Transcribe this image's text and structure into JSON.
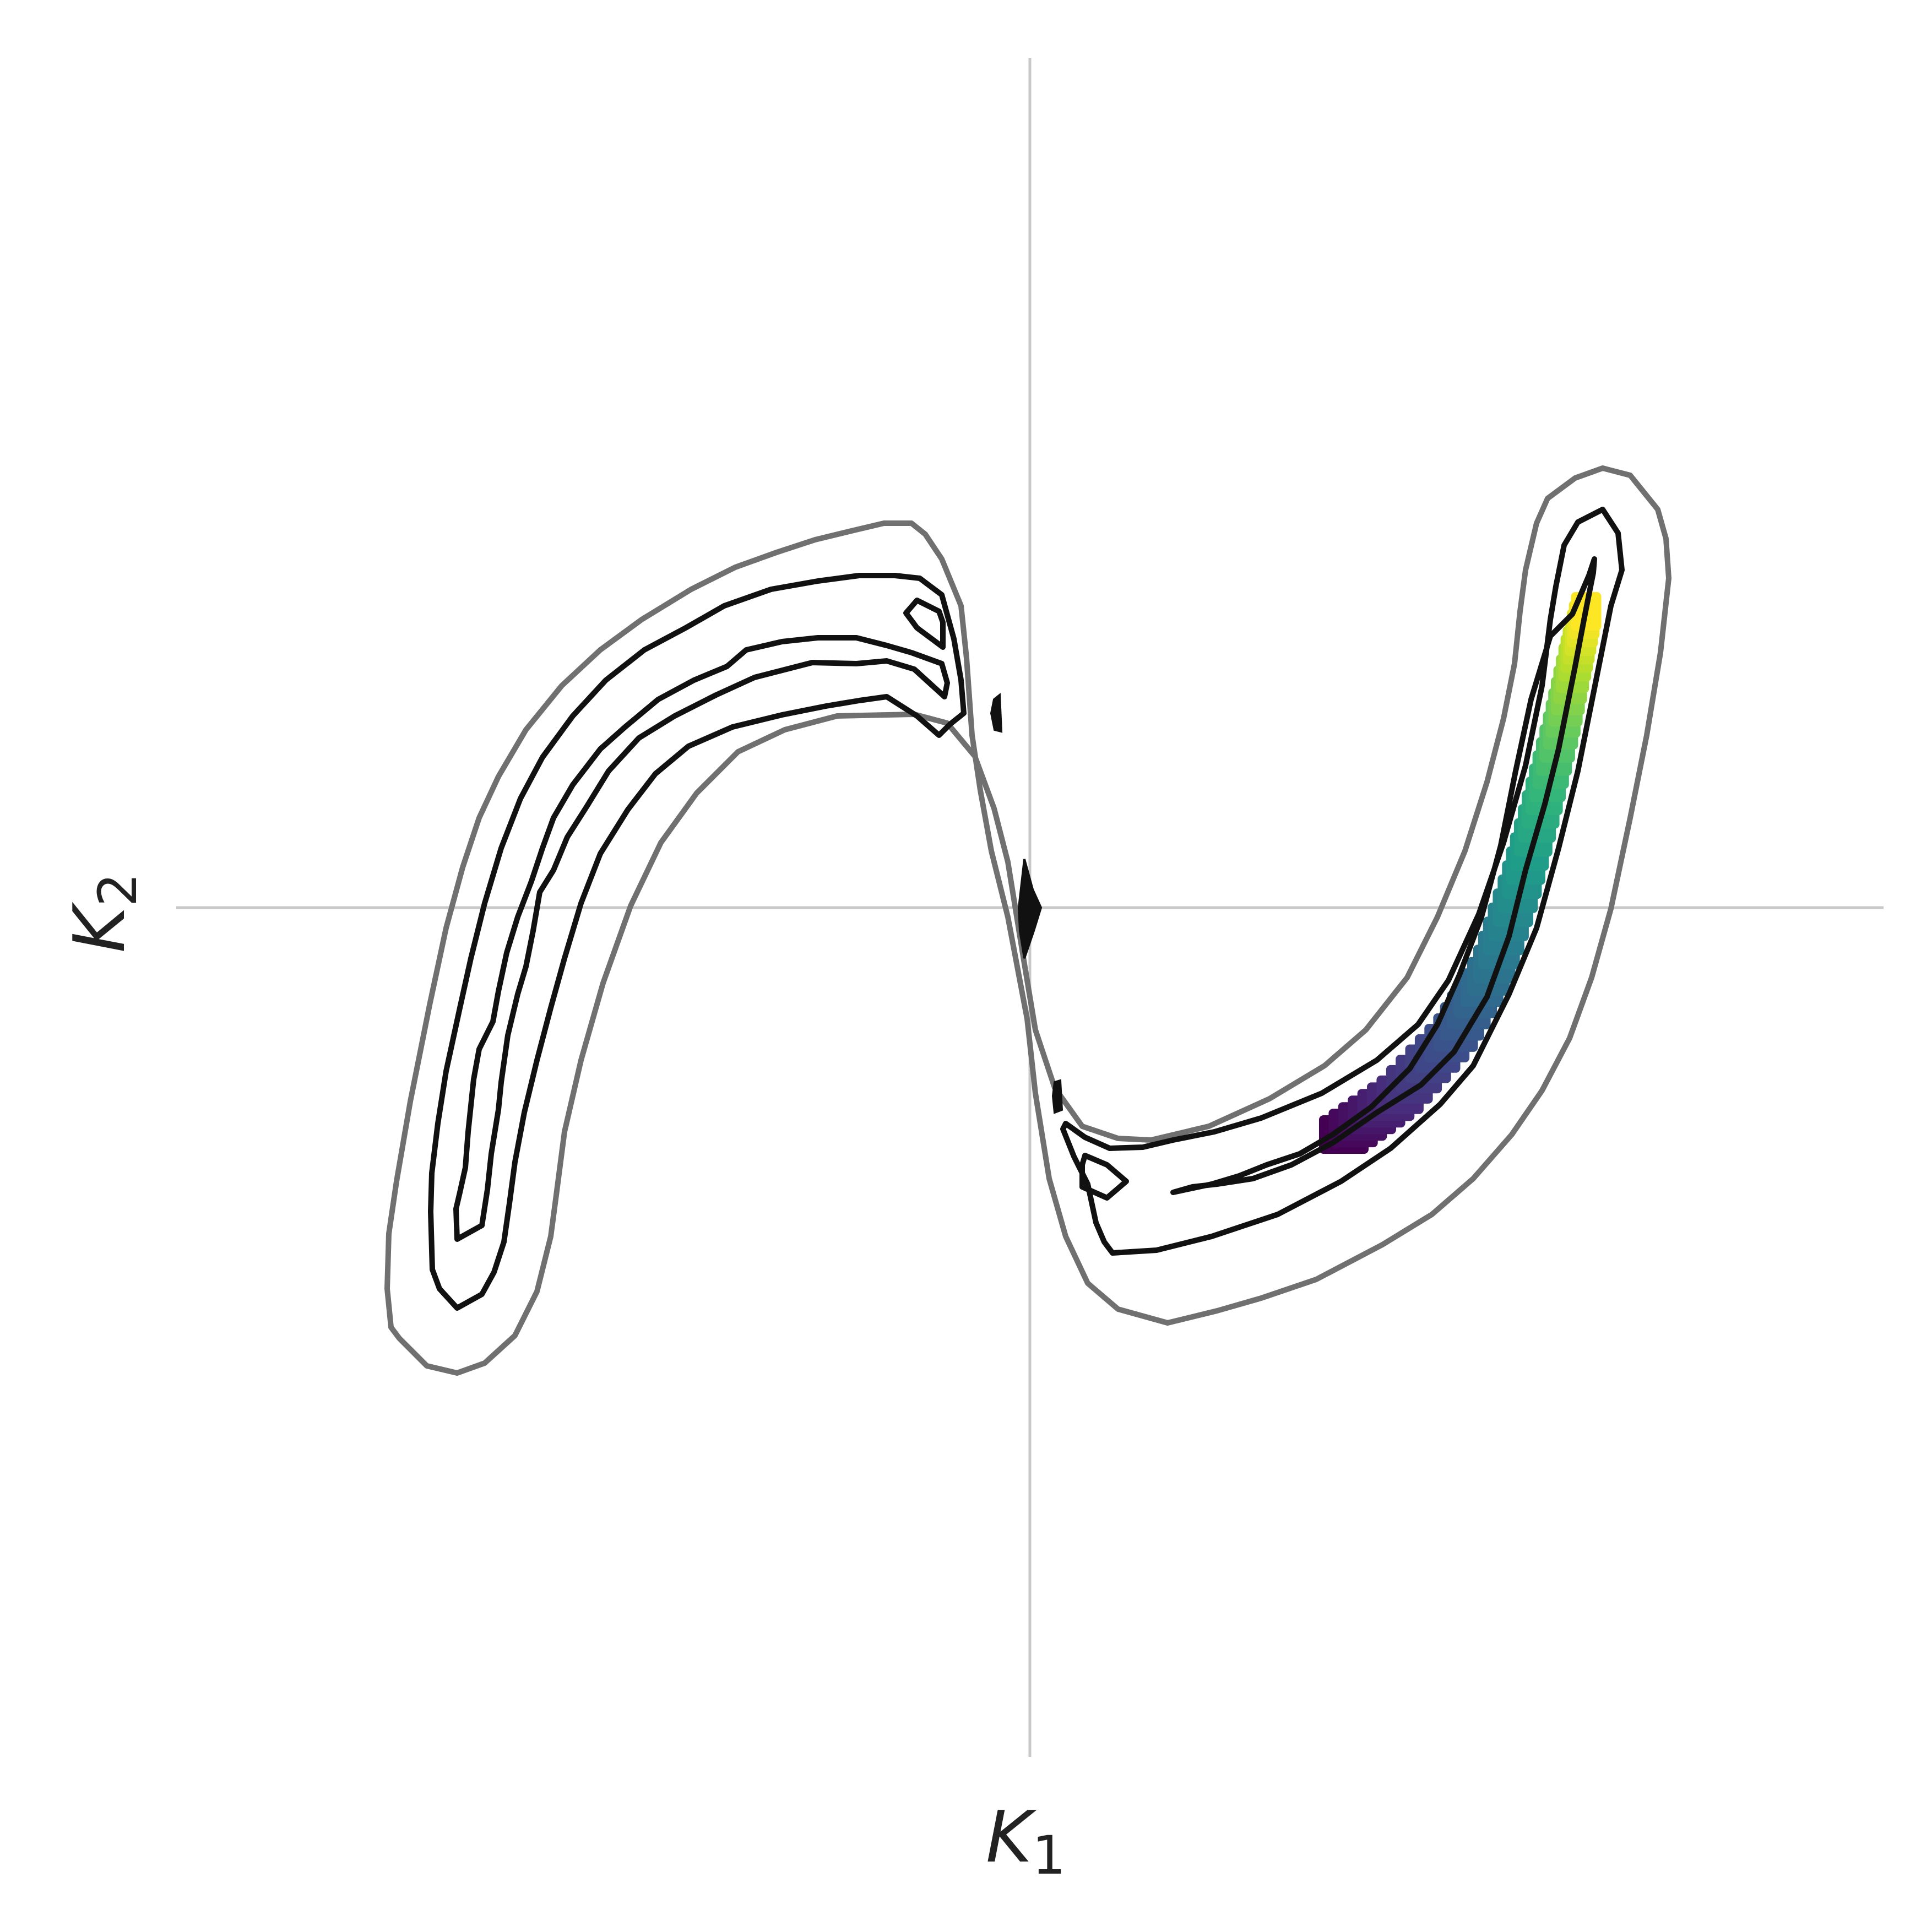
{
  "chart_data": {
    "type": "contour",
    "xlabel": "K",
    "xlabel_sub": "1",
    "ylabel": "K",
    "ylabel_sub": "2",
    "grid": false,
    "zero_lines": true,
    "contours": {
      "levels_shown": 3,
      "outer_color": "#707070",
      "inner_color": "#111111"
    },
    "trajectory": {
      "colormap": "viridis",
      "start_color": "#440154",
      "end_color": "#fde725",
      "points": 48
    }
  }
}
